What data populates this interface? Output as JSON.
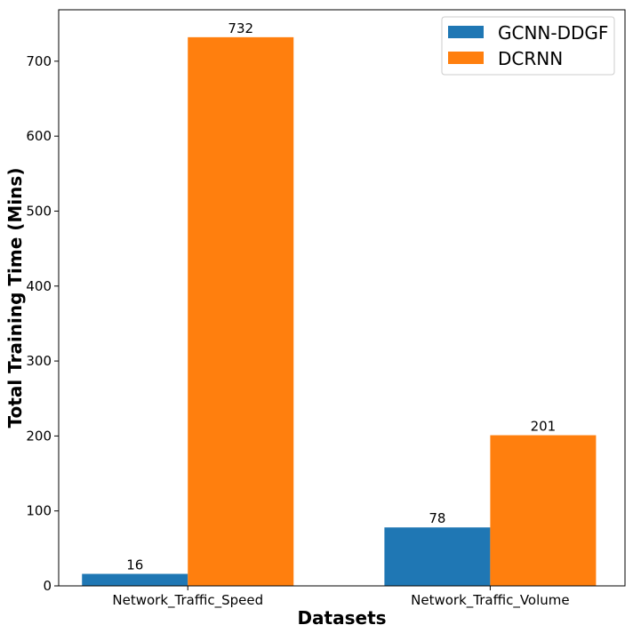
{
  "chart_data": {
    "type": "bar",
    "title": "",
    "xlabel": "Datasets",
    "ylabel": "Total Training Time (Mins)",
    "categories": [
      "Network_Traffic_Speed",
      "Network_Traffic_Volume"
    ],
    "series": [
      {
        "name": "GCNN-DDGF",
        "values": [
          16,
          78
        ],
        "color": "#1f77b4"
      },
      {
        "name": "DCRNN",
        "values": [
          732,
          201
        ],
        "color": "#ff7f0e"
      }
    ],
    "data_labels": [
      [
        "16",
        "78"
      ],
      [
        "732",
        "201"
      ]
    ],
    "ylim": [
      0,
      768.6
    ],
    "yticks": [
      0,
      100,
      200,
      300,
      400,
      500,
      600,
      700
    ],
    "grid": false,
    "legend_position": "top-right"
  }
}
